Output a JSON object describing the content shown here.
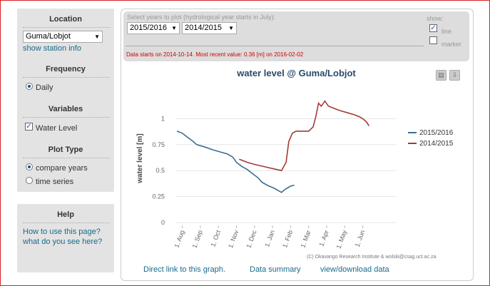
{
  "sidebar": {
    "location_title": "Location",
    "location_value": "Guma/Lobjot",
    "show_station_info": "show station info",
    "frequency_title": "Frequency",
    "frequency_daily": "Daily",
    "variables_title": "Variables",
    "variable_water_level": "Water Level",
    "plot_type_title": "Plot Type",
    "plot_compare_years": "compare years",
    "plot_time_series": "time series"
  },
  "help": {
    "title": "Help",
    "how_to_use": "How to use this page?",
    "what_do_you_see": "what do you see here?"
  },
  "controls": {
    "select_years_label": "Select years to plot (hydrological year starts in July):",
    "year1": "2015/2016",
    "year2": "2014/2015",
    "show_label": "show:",
    "line_label": "line",
    "marker_label": "marker",
    "line_checked": true,
    "marker_checked": false,
    "data_info": "Data starts on 2014-10-14. Most recent value: 0.36 [m] on 2016-02-02"
  },
  "colors": {
    "series_2015": "#3c6e91",
    "series_2014": "#a33a3a"
  },
  "chart_data": {
    "type": "line",
    "title": "water level @ Guma/Lobjot",
    "ylabel": "water level [m]",
    "xlabel": "",
    "ylim": [
      0,
      1.25
    ],
    "yticks": [
      "0",
      "0.25",
      "0.5",
      "0.75",
      "1"
    ],
    "xticks": [
      "1. Aug",
      "1. Sep",
      "1. Oct",
      "1. Nov",
      "1. Dec",
      "1. Jan",
      "1. Feb",
      "1. Mar",
      "1. Apr",
      "1. May",
      "1. Jun"
    ],
    "series": [
      {
        "name": "2015/2016",
        "points": [
          [
            0,
            0.88
          ],
          [
            0.3,
            0.86
          ],
          [
            0.6,
            0.82
          ],
          [
            0.9,
            0.78
          ],
          [
            1.1,
            0.75
          ],
          [
            1.5,
            0.73
          ],
          [
            2.0,
            0.7
          ],
          [
            2.4,
            0.68
          ],
          [
            2.8,
            0.66
          ],
          [
            3.1,
            0.63
          ],
          [
            3.3,
            0.58
          ],
          [
            3.6,
            0.54
          ],
          [
            3.9,
            0.51
          ],
          [
            4.2,
            0.47
          ],
          [
            4.5,
            0.43
          ],
          [
            4.7,
            0.39
          ],
          [
            5.0,
            0.36
          ],
          [
            5.4,
            0.33
          ],
          [
            5.6,
            0.31
          ],
          [
            5.8,
            0.29
          ],
          [
            6.0,
            0.32
          ],
          [
            6.3,
            0.35
          ],
          [
            6.5,
            0.36
          ]
        ]
      },
      {
        "name": "2014/2015",
        "points": [
          [
            3.45,
            0.61
          ],
          [
            3.6,
            0.6
          ],
          [
            3.9,
            0.58
          ],
          [
            4.3,
            0.56
          ],
          [
            4.8,
            0.54
          ],
          [
            5.3,
            0.52
          ],
          [
            5.8,
            0.5
          ],
          [
            6.05,
            0.58
          ],
          [
            6.2,
            0.78
          ],
          [
            6.4,
            0.86
          ],
          [
            6.6,
            0.88
          ],
          [
            7.0,
            0.88
          ],
          [
            7.3,
            0.88
          ],
          [
            7.55,
            0.92
          ],
          [
            7.7,
            1.02
          ],
          [
            7.85,
            1.15
          ],
          [
            8.0,
            1.12
          ],
          [
            8.2,
            1.17
          ],
          [
            8.4,
            1.12
          ],
          [
            8.7,
            1.1
          ],
          [
            9.0,
            1.08
          ],
          [
            9.4,
            1.06
          ],
          [
            9.8,
            1.04
          ],
          [
            10.1,
            1.02
          ],
          [
            10.3,
            1.0
          ],
          [
            10.5,
            0.97
          ],
          [
            10.65,
            0.93
          ]
        ]
      }
    ]
  },
  "copyright": "(C) Okavango Research Institute & wolski@csag.uct.ac.za",
  "links": {
    "direct_link": "Direct link to this graph.",
    "data_summary": "Data summary",
    "view_download": "view/download data"
  },
  "icons": {
    "print": "print-icon",
    "download": "download-icon"
  }
}
